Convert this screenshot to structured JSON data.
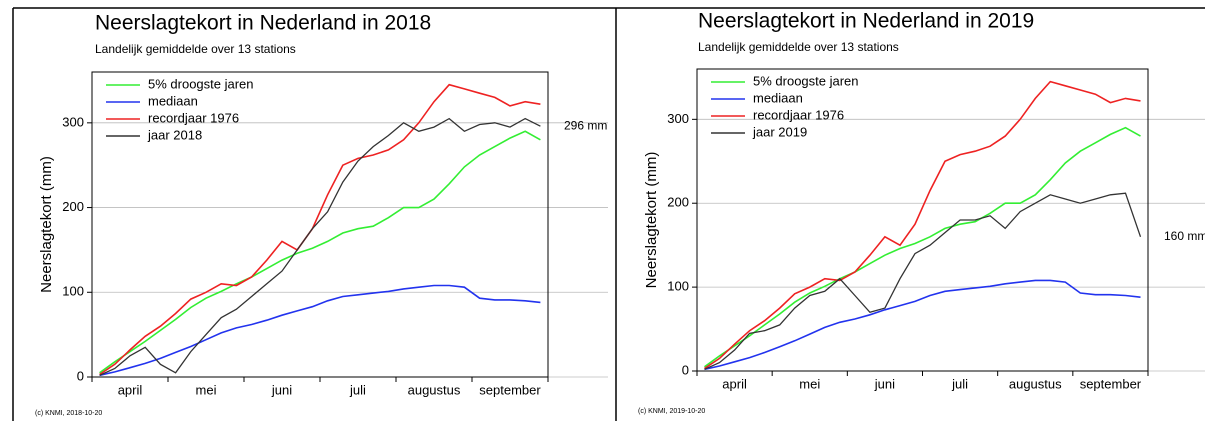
{
  "chart_data": [
    {
      "type": "line",
      "title": "Neerslagtekort in Nederland in 2018",
      "subtitle": "Landelijk gemiddelde over 13 stations",
      "ylabel": "Neerslagtekort (mm)",
      "x": [
        null,
        null,
        "april",
        null,
        null,
        null,
        null,
        "mei",
        null,
        null,
        null,
        null,
        "juni",
        null,
        null,
        null,
        null,
        "juli",
        null,
        null,
        null,
        null,
        "augustus",
        null,
        null,
        null,
        null,
        "september",
        null,
        null
      ],
      "series": [
        {
          "name": "5% droogste jaren",
          "color": "#33ee33",
          "values": [
            5,
            18,
            30,
            42,
            55,
            68,
            82,
            93,
            101,
            110,
            118,
            128,
            138,
            146,
            152,
            160,
            170,
            175,
            178,
            188,
            200,
            200,
            210,
            228,
            248,
            262,
            272,
            282,
            290,
            280
          ]
        },
        {
          "name": "mediaan",
          "color": "#2233ee",
          "values": [
            2,
            6,
            11,
            16,
            22,
            29,
            36,
            44,
            52,
            58,
            62,
            67,
            73,
            78,
            83,
            90,
            95,
            97,
            99,
            101,
            104,
            106,
            108,
            108,
            106,
            93,
            91,
            91,
            90,
            88
          ]
        },
        {
          "name": "recordjaar 1976",
          "color": "#ee2222",
          "values": [
            3,
            15,
            32,
            48,
            60,
            75,
            92,
            100,
            110,
            108,
            118,
            138,
            160,
            150,
            175,
            215,
            250,
            258,
            262,
            268,
            280,
            300,
            325,
            345,
            340,
            335,
            330,
            320,
            325,
            322
          ]
        },
        {
          "name": "jaar 2018",
          "color": "#333333",
          "values": [
            2,
            10,
            25,
            35,
            15,
            5,
            30,
            50,
            70,
            80,
            95,
            110,
            125,
            150,
            175,
            195,
            230,
            255,
            272,
            285,
            300,
            290,
            295,
            305,
            290,
            298,
            300,
            295,
            305,
            296
          ]
        }
      ],
      "ylim": [
        0,
        360
      ],
      "yticks": [
        0,
        100,
        200,
        300
      ],
      "grid": true,
      "legend": "upper left",
      "annotation": "296 mm",
      "footer": "(c) KNMI, 2018-10-20"
    },
    {
      "type": "line",
      "title": "Neerslagtekort in Nederland in 2019",
      "subtitle": "Landelijk gemiddelde over 13 stations",
      "ylabel": "Neerslagtekort (mm)",
      "x": [
        null,
        null,
        "april",
        null,
        null,
        null,
        null,
        "mei",
        null,
        null,
        null,
        null,
        "juni",
        null,
        null,
        null,
        null,
        "juli",
        null,
        null,
        null,
        null,
        "augustus",
        null,
        null,
        null,
        null,
        "september",
        null,
        null
      ],
      "series": [
        {
          "name": "5% droogste jaren",
          "color": "#33ee33",
          "values": [
            5,
            18,
            30,
            42,
            55,
            68,
            82,
            93,
            101,
            110,
            118,
            128,
            138,
            146,
            152,
            160,
            170,
            175,
            178,
            188,
            200,
            200,
            210,
            228,
            248,
            262,
            272,
            282,
            290,
            280
          ]
        },
        {
          "name": "mediaan",
          "color": "#2233ee",
          "values": [
            2,
            6,
            11,
            16,
            22,
            29,
            36,
            44,
            52,
            58,
            62,
            67,
            73,
            78,
            83,
            90,
            95,
            97,
            99,
            101,
            104,
            106,
            108,
            108,
            106,
            93,
            91,
            91,
            90,
            88
          ]
        },
        {
          "name": "recordjaar 1976",
          "color": "#ee2222",
          "values": [
            3,
            15,
            32,
            48,
            60,
            75,
            92,
            100,
            110,
            108,
            118,
            138,
            160,
            150,
            175,
            215,
            250,
            258,
            262,
            268,
            280,
            300,
            325,
            345,
            340,
            335,
            330,
            320,
            325,
            322
          ]
        },
        {
          "name": "jaar 2019",
          "color": "#333333",
          "values": [
            2,
            10,
            25,
            45,
            48,
            55,
            75,
            90,
            95,
            110,
            90,
            70,
            75,
            110,
            140,
            150,
            165,
            180,
            180,
            185,
            170,
            190,
            200,
            210,
            205,
            200,
            205,
            210,
            212,
            160
          ]
        }
      ],
      "ylim": [
        0,
        360
      ],
      "yticks": [
        0,
        100,
        200,
        300
      ],
      "grid": true,
      "legend": "upper left",
      "annotation": "160 mm",
      "footer": "(c) KNMI, 2019-10-20"
    }
  ]
}
